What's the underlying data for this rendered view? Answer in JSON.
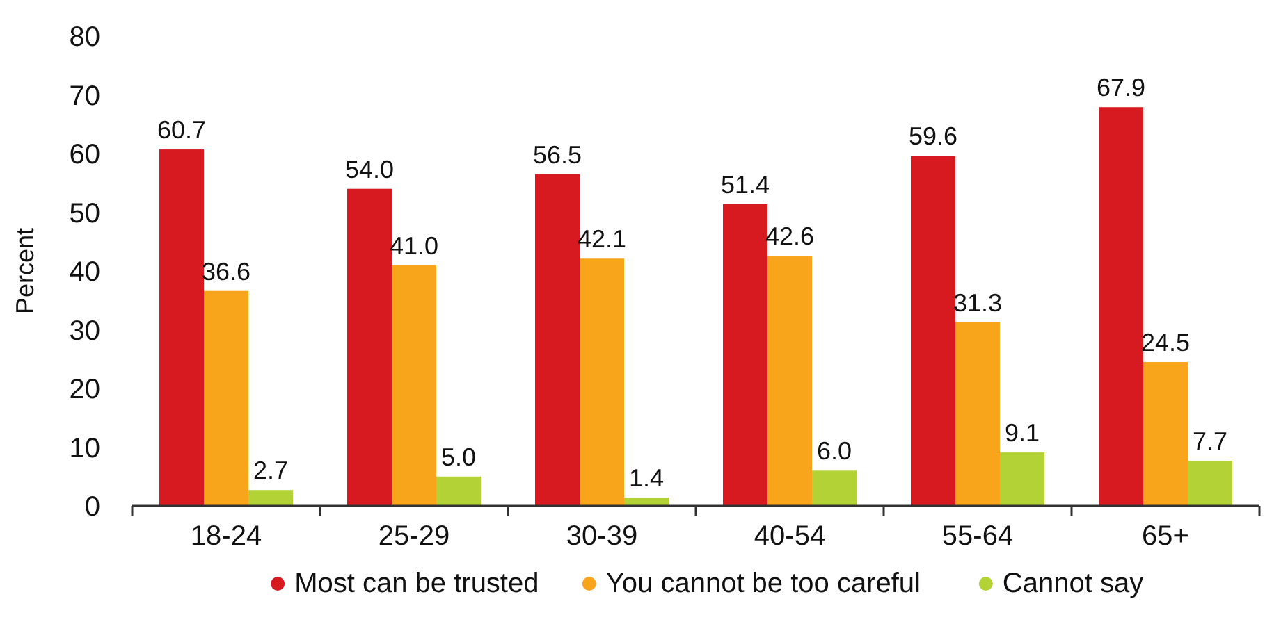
{
  "chart_data": {
    "type": "bar",
    "ylabel": "Percent",
    "categories": [
      "18-24",
      "25-29",
      "30-39",
      "40-54",
      "55-64",
      "65+"
    ],
    "series": [
      {
        "name": "Most can be trusted",
        "color": "#d71920",
        "values": [
          60.7,
          54.0,
          56.5,
          51.4,
          59.6,
          67.9
        ],
        "value_labels": [
          "60.7",
          "54.0",
          "56.5",
          "51.4",
          "59.6",
          "67.9"
        ]
      },
      {
        "name": "You cannot be too careful",
        "color": "#f8a51b",
        "values": [
          36.6,
          41.0,
          42.1,
          42.6,
          31.3,
          24.5
        ],
        "value_labels": [
          "36.6",
          "41.0",
          "42.1",
          "42.6",
          "31.3",
          "24.5"
        ]
      },
      {
        "name": "Cannot say",
        "color": "#b3d235",
        "values": [
          2.7,
          5.0,
          1.4,
          6.0,
          9.1,
          7.7
        ],
        "value_labels": [
          "2.7",
          "5.0",
          "1.4",
          "6.0",
          "9.1",
          "7.7"
        ]
      }
    ],
    "ylim": [
      0,
      80
    ],
    "yticks": [
      0,
      10,
      20,
      30,
      40,
      50,
      60,
      70,
      80
    ],
    "grid": false,
    "legend": "bottom"
  }
}
